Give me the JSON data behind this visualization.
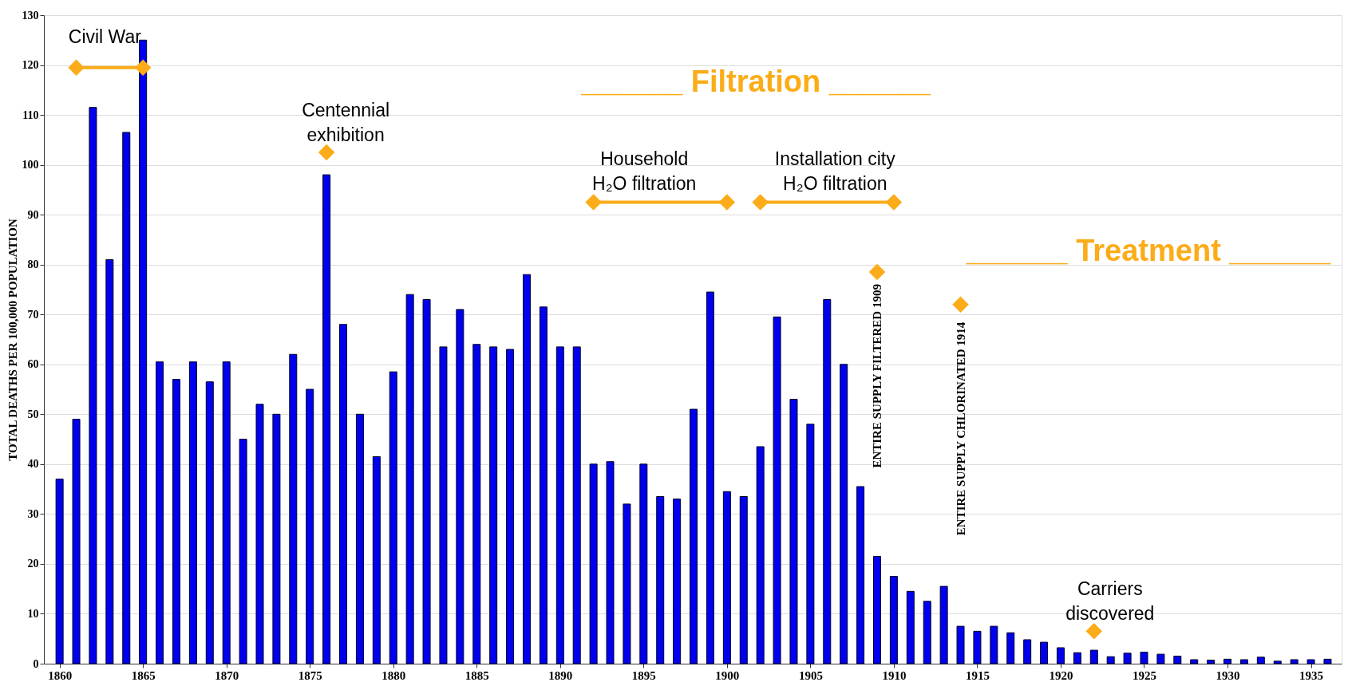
{
  "chart_data": {
    "type": "bar",
    "ylabel": "TOTAL DEATHS PER 100,000 POPULATION",
    "x": [
      1860,
      1861,
      1862,
      1863,
      1864,
      1865,
      1866,
      1867,
      1868,
      1869,
      1870,
      1871,
      1872,
      1873,
      1874,
      1875,
      1876,
      1877,
      1878,
      1879,
      1880,
      1881,
      1882,
      1883,
      1884,
      1885,
      1886,
      1887,
      1888,
      1889,
      1890,
      1891,
      1892,
      1893,
      1894,
      1895,
      1896,
      1897,
      1898,
      1899,
      1900,
      1901,
      1902,
      1903,
      1904,
      1905,
      1906,
      1907,
      1908,
      1909,
      1910,
      1911,
      1912,
      1913,
      1914,
      1915,
      1916,
      1917,
      1918,
      1919,
      1920,
      1921,
      1922,
      1923,
      1924,
      1925,
      1926,
      1927,
      1928,
      1929,
      1930,
      1931,
      1932,
      1933,
      1934,
      1935,
      1936
    ],
    "series": [
      {
        "color": "#0000ee",
        "values": [
          37,
          49,
          111.5,
          81,
          106.5,
          125,
          60.5,
          57,
          60.5,
          56.5,
          60.5,
          45,
          52,
          50,
          62,
          55,
          98,
          68,
          50,
          41.5,
          58.5,
          74,
          73,
          63.5,
          71,
          64,
          63.5,
          63,
          78,
          71.5,
          63.5,
          63.5,
          40,
          40.5,
          32,
          40,
          33.5,
          33,
          51,
          74.5,
          34.5,
          33.5,
          43.5,
          69.5,
          53,
          48,
          73,
          60,
          35.5,
          21.5,
          17.5,
          14.5,
          12.5,
          15.5,
          7.5,
          6.5,
          7.5,
          6.2,
          4.8,
          4.3,
          3.2,
          2.2,
          2.7,
          1.4,
          2.1,
          2.3,
          1.9,
          1.5,
          0.8,
          0.7,
          0.9,
          0.8,
          1.3,
          0.5,
          0.8,
          0.8,
          0.9
        ]
      },
      {
        "type": "line",
        "color": "#fbac18",
        "x": [
          1861,
          1865
        ],
        "values": [
          119.5,
          119.5
        ]
      },
      {
        "type": "line",
        "color": "#fbac18",
        "x": [
          1892,
          1900
        ],
        "values": [
          92.5,
          92.5
        ]
      },
      {
        "type": "line",
        "color": "#fbac18",
        "x": [
          1902,
          1910
        ],
        "values": [
          92.5,
          92.5
        ]
      },
      {
        "type": "scatter",
        "color": "#fbac18",
        "x": [
          1876,
          1909,
          1914,
          1922
        ],
        "values": [
          102.5,
          78.5,
          72,
          6.5
        ]
      }
    ],
    "marker": "diamond",
    "annotations": [
      {
        "text": "Civil War",
        "x": 1863,
        "y": 119.5
      },
      {
        "text": "Centennial\nexhibition",
        "x": 1876,
        "y": 102.5
      },
      {
        "text": "Household\nH₂O filtration",
        "x": 1896,
        "y": 92.5
      },
      {
        "text": "Installation city\nH₂O filtration",
        "x": 1906,
        "y": 92.5
      },
      {
        "text": "ENTIRE SUPPLY FILTERED 1909",
        "x": 1909,
        "y": 78.5
      },
      {
        "text": "ENTIRE SUPPLY CHLORINATED 1914",
        "x": 1914,
        "y": 72
      },
      {
        "text": "Carriers\ndiscovered",
        "x": 1922,
        "y": 6.5
      },
      "______ Filtration ______",
      "______ Treatment ______"
    ],
    "xlim": [
      1859.3,
      1936.6
    ],
    "xticks": [
      1860,
      1865,
      1870,
      1875,
      1880,
      1885,
      1890,
      1895,
      1900,
      1905,
      1910,
      1915,
      1920,
      1925,
      1930,
      1935
    ],
    "ylim": [
      0,
      130
    ],
    "yticks": [
      0,
      10,
      20,
      30,
      40,
      50,
      60,
      70,
      80,
      90,
      100,
      110,
      120,
      130
    ],
    "grid": "y"
  }
}
